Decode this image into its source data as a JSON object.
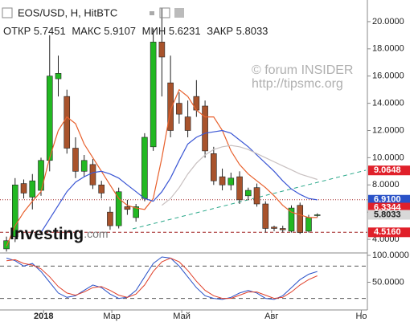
{
  "chart_data": {
    "type": "candlestick",
    "title": "EOS/USD, H, HitBTC",
    "ohlc": [
      {
        "label": "ОТКР",
        "value": 5.7451
      },
      {
        "label": "МАКС",
        "value": 5.9107
      },
      {
        "label": "МИН",
        "value": 5.6231
      },
      {
        "label": "ЗАКР",
        "value": 5.8033
      }
    ],
    "watermark": [
      "© forum INSIDER",
      "http://tipsmc.org"
    ],
    "logo": [
      "Investing",
      ".com"
    ],
    "up_color": "#22b822",
    "down_color": "#a8532c",
    "open": [
      3.3,
      4.2,
      8.1,
      7.1,
      7.6,
      9.8,
      15.8,
      14.5,
      10.7,
      9.0,
      9.5,
      8.0,
      6.0,
      5.0,
      6.4,
      5.6,
      7.0,
      10.8,
      18.5,
      15.5,
      14.0,
      13.0,
      14.5,
      13.8,
      10.3,
      8.6,
      8.0,
      8.6,
      7.2,
      7.8,
      6.6,
      4.9,
      4.8,
      4.6,
      6.5,
      4.6,
      5.7451
    ],
    "high": [
      4.2,
      8.5,
      8.4,
      8.8,
      10.0,
      19.0,
      17.5,
      15.0,
      11.5,
      10.2,
      9.9,
      8.3,
      6.4,
      7.8,
      6.9,
      6.6,
      11.8,
      19.5,
      21.0,
      17.5,
      14.8,
      14.2,
      15.7,
      14.2,
      10.8,
      9.2,
      8.9,
      9.0,
      7.8,
      8.1,
      6.8,
      5.0,
      5.0,
      6.5,
      6.7,
      5.8,
      5.9107
    ],
    "low": [
      3.1,
      3.8,
      7.0,
      6.2,
      7.2,
      9.0,
      14.5,
      10.3,
      8.5,
      8.6,
      7.7,
      7.0,
      4.7,
      4.8,
      5.8,
      5.3,
      6.8,
      10.5,
      14.5,
      11.5,
      12.5,
      11.5,
      13.0,
      10.0,
      8.0,
      7.6,
      7.6,
      6.6,
      6.9,
      6.4,
      4.5,
      4.6,
      4.5,
      4.5,
      4.4,
      4.5,
      5.6231
    ],
    "close": [
      3.9,
      8.0,
      7.4,
      8.3,
      9.8,
      16.0,
      16.2,
      10.7,
      9.0,
      9.8,
      8.0,
      7.4,
      5.0,
      7.5,
      6.2,
      6.4,
      11.5,
      18.5,
      17.4,
      12.0,
      13.2,
      12.0,
      13.5,
      10.5,
      8.3,
      8.0,
      8.5,
      6.9,
      7.6,
      6.6,
      4.8,
      4.8,
      4.7,
      6.3,
      4.5,
      5.6,
      5.8033
    ],
    "moving_averages": [
      {
        "color": "#e8602c",
        "values": [
          3.5,
          5,
          6,
          6.8,
          7.5,
          10,
          12,
          13,
          12.5,
          11,
          10,
          9,
          8,
          7,
          6.5,
          6.3,
          6.2,
          7,
          10,
          13.5,
          15,
          14.5,
          13.5,
          13,
          13,
          12,
          10.5,
          9.5,
          8.8,
          8.3,
          7.8,
          7.2,
          6.5,
          6,
          5.8,
          5.6,
          5.6
        ]
      },
      {
        "color": "#3a56d4",
        "values": [
          null,
          null,
          null,
          null,
          4.5,
          5.5,
          6.5,
          7.5,
          8.2,
          8.6,
          8.9,
          9.0,
          8.8,
          8.5,
          8.0,
          7.5,
          7.0,
          6.8,
          7.5,
          8.5,
          9.8,
          11,
          11.5,
          11.8,
          11.9,
          12,
          11.8,
          11.3,
          10.8,
          10.2,
          9.6,
          9.0,
          8.3,
          7.7,
          7.3,
          7.0,
          6.9
        ]
      },
      {
        "color": "#c8c0c0",
        "values": [
          null,
          null,
          null,
          null,
          null,
          null,
          null,
          null,
          null,
          null,
          null,
          null,
          null,
          null,
          null,
          null,
          null,
          null,
          6.5,
          7,
          7.8,
          8.8,
          9.6,
          10.2,
          10.6,
          10.8,
          10.9,
          10.8,
          10.6,
          10.3,
          10,
          9.7,
          9.4,
          9.1,
          8.8,
          8.6,
          8.4
        ]
      }
    ],
    "xlim": [
      -0.75,
      41.8
    ],
    "xticks": [
      {
        "value": 4.3,
        "label": "2018"
      },
      {
        "value": 12.2,
        "label": "Мар"
      },
      {
        "value": 20.3,
        "label": "Май"
      },
      {
        "value": 30.7,
        "label": "Авг"
      },
      {
        "value": 41.1,
        "label": "Но"
      }
    ],
    "ylim": [
      3.0,
      21.59
    ],
    "yticks": [
      {
        "value": 4,
        "label": "4.0000"
      },
      {
        "value": 6,
        "label": "6.0000"
      },
      {
        "value": 8,
        "label": "8.0000"
      },
      {
        "value": 10,
        "label": "10.0000"
      },
      {
        "value": 12,
        "label": "12.0000"
      },
      {
        "value": 14,
        "label": "14.0000"
      },
      {
        "value": 16,
        "label": "16.0000"
      },
      {
        "value": 18,
        "label": "18.0000"
      },
      {
        "value": 20,
        "label": "20.0000"
      }
    ],
    "price_labels": [
      {
        "value": 9.0648,
        "label": "9.0648",
        "color": "#e0202a"
      },
      {
        "value": 6.91,
        "label": "6.9100",
        "color": "#2a52c8",
        "line": "dotted"
      },
      {
        "value": 6.3344,
        "label": "6.3344",
        "color": "#e0202a"
      },
      {
        "value": 5.8033,
        "label": "5.8033",
        "color": "#d8d8d8"
      },
      {
        "value": 4.516,
        "label": "4.5160",
        "color": "#e0202a",
        "line": "dashed"
      }
    ],
    "oscillator": {
      "ylim": [
        -1.5,
        104.5
      ],
      "yticks": [
        {
          "value": 100,
          "label": "100.0000"
        },
        {
          "value": 50,
          "label": "50.0000"
        }
      ],
      "levels": [
        80,
        20
      ],
      "series": [
        {
          "color": "#2a52c8",
          "values": [
            95,
            90,
            80,
            85,
            70,
            50,
            30,
            22,
            25,
            35,
            45,
            40,
            28,
            20,
            22,
            35,
            60,
            85,
            97,
            95,
            80,
            60,
            40,
            25,
            20,
            18,
            22,
            30,
            35,
            30,
            20,
            18,
            25,
            40,
            55,
            65,
            70
          ]
        },
        {
          "color": "#e0402a",
          "values": [
            90,
            92,
            85,
            82,
            75,
            60,
            42,
            30,
            26,
            32,
            40,
            42,
            35,
            26,
            22,
            28,
            45,
            70,
            88,
            95,
            88,
            72,
            52,
            35,
            25,
            20,
            20,
            26,
            32,
            32,
            26,
            20,
            22,
            32,
            45,
            55,
            62
          ]
        }
      ]
    }
  }
}
